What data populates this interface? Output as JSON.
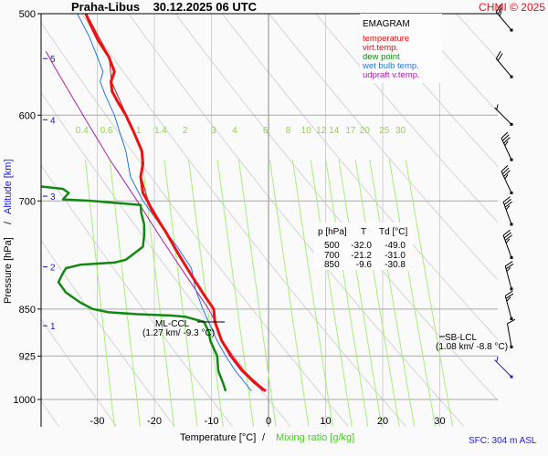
{
  "header": {
    "title": "Praha-Libus    30.12.2025 06 UTC",
    "station": "Praha-Libus",
    "datetime": "30.12.2025 06 UTC",
    "brand": "CHMI © 2025"
  },
  "footer": {
    "sfc": "SFC: 304 m ASL"
  },
  "chart_data": {
    "type": "line",
    "subtype": "emagram",
    "title": "Praha-Libus 30.12.2025 06 UTC",
    "xlabel": "Temperature [°C]",
    "xlabel_secondary": "Mixing ratio [g/kg]",
    "xlabel_separator": "/",
    "ylabel": "Pressure [hPa]",
    "ylabel_secondary": "Altitude [km]",
    "ylabel_separator": "/",
    "xlim": [
      -40,
      40
    ],
    "ylim": [
      1000,
      500
    ],
    "y_scale": "log",
    "x_ticks": [
      "-30",
      "-20",
      "-10",
      "0",
      "10",
      "20",
      "30"
    ],
    "x_tick_values": [
      -30,
      -20,
      -10,
      0,
      10,
      20,
      30
    ],
    "y_ticks": [
      "500",
      "600",
      "700",
      "850",
      "925",
      "1000"
    ],
    "y_tick_values": [
      500,
      600,
      700,
      850,
      925,
      1000
    ],
    "altitude_ticks": [
      {
        "label": "1",
        "pressure": 876
      },
      {
        "label": "2",
        "pressure": 788
      },
      {
        "label": "3",
        "pressure": 694
      },
      {
        "label": "4",
        "pressure": 605
      },
      {
        "label": "5",
        "pressure": 542
      }
    ],
    "mixing_ratio_labels": [
      "0.4",
      "0.6",
      "1",
      "1.4",
      "2",
      "3",
      "4",
      "6",
      "8",
      "10",
      "12",
      "14",
      "17",
      "20",
      "25",
      "30"
    ],
    "mixing_ratio_values": [
      0.4,
      0.6,
      1,
      1.4,
      2,
      3,
      4,
      6,
      8,
      10,
      12,
      14,
      17,
      20,
      25,
      30
    ],
    "legend": {
      "title": "EMAGRAM",
      "placement": "top-right",
      "items": [
        {
          "label": "temperature",
          "color": "#ee1111"
        },
        {
          "label": "virt.temp.",
          "color": "#aa2222"
        },
        {
          "label": "dew point",
          "color": "#118811"
        },
        {
          "label": "wet bulb temp.",
          "color": "#2277dd"
        },
        {
          "label": "udpraft v.temp.",
          "color": "#aa22aa"
        }
      ]
    },
    "series": [
      {
        "name": "temperature",
        "color": "#ee1111",
        "points": [
          [
            985,
            -0.5
          ],
          [
            970,
            -2.5
          ],
          [
            950,
            -4.5
          ],
          [
            925,
            -6.5
          ],
          [
            900,
            -8.2
          ],
          [
            870,
            -9.4
          ],
          [
            850,
            -9.6
          ],
          [
            830,
            -11.2
          ],
          [
            800,
            -13.5
          ],
          [
            770,
            -15.8
          ],
          [
            740,
            -18.0
          ],
          [
            715,
            -20.2
          ],
          [
            700,
            -21.2
          ],
          [
            690,
            -22.0
          ],
          [
            670,
            -22.4
          ],
          [
            655,
            -22.0
          ],
          [
            640,
            -22.2
          ],
          [
            620,
            -23.5
          ],
          [
            600,
            -25.0
          ],
          [
            585,
            -26.5
          ],
          [
            575,
            -27.4
          ],
          [
            565,
            -27.6
          ],
          [
            555,
            -27.0
          ],
          [
            540,
            -28.0
          ],
          [
            525,
            -29.8
          ],
          [
            510,
            -31.2
          ],
          [
            500,
            -32.0
          ]
        ]
      },
      {
        "name": "virt.temp.",
        "color": "#aa2222",
        "points": [
          [
            985,
            -0.4
          ],
          [
            950,
            -4.4
          ],
          [
            925,
            -6.4
          ],
          [
            900,
            -8.1
          ],
          [
            870,
            -9.3
          ],
          [
            850,
            -9.5
          ],
          [
            800,
            -13.4
          ],
          [
            740,
            -17.9
          ],
          [
            700,
            -21.1
          ],
          [
            670,
            -22.3
          ],
          [
            640,
            -22.1
          ],
          [
            600,
            -24.9
          ],
          [
            565,
            -27.5
          ],
          [
            540,
            -27.9
          ],
          [
            500,
            -31.9
          ]
        ]
      },
      {
        "name": "dew point",
        "color": "#118811",
        "points": [
          [
            985,
            -7.5
          ],
          [
            970,
            -8.0
          ],
          [
            950,
            -8.8
          ],
          [
            925,
            -9.0
          ],
          [
            900,
            -10.2
          ],
          [
            885,
            -10.5
          ],
          [
            870,
            -11.3
          ],
          [
            862,
            -14.5
          ],
          [
            860,
            -17.0
          ],
          [
            858,
            -23.0
          ],
          [
            855,
            -28.0
          ],
          [
            850,
            -30.8
          ],
          [
            840,
            -33.0
          ],
          [
            825,
            -35.5
          ],
          [
            810,
            -36.8
          ],
          [
            800,
            -36.2
          ],
          [
            790,
            -35.5
          ],
          [
            785,
            -33.0
          ],
          [
            782,
            -27.0
          ],
          [
            778,
            -25.0
          ],
          [
            772,
            -24.0
          ],
          [
            760,
            -22.0
          ],
          [
            745,
            -21.8
          ],
          [
            730,
            -21.8
          ],
          [
            715,
            -22.3
          ],
          [
            705,
            -22.4
          ],
          [
            700,
            -31.0
          ],
          [
            698,
            -36.0
          ],
          [
            690,
            -35.0
          ],
          [
            685,
            -36.0
          ],
          [
            682,
            -40.0
          ]
        ]
      },
      {
        "name": "wet bulb temp.",
        "color": "#2277dd",
        "points": [
          [
            985,
            -3.0
          ],
          [
            950,
            -5.8
          ],
          [
            925,
            -7.5
          ],
          [
            900,
            -9.0
          ],
          [
            870,
            -10.5
          ],
          [
            850,
            -11.5
          ],
          [
            820,
            -12.8
          ],
          [
            790,
            -13.5
          ],
          [
            760,
            -16.0
          ],
          [
            730,
            -19.0
          ],
          [
            700,
            -22.0
          ],
          [
            670,
            -24.2
          ],
          [
            640,
            -25.0
          ],
          [
            620,
            -26.0
          ],
          [
            600,
            -27.0
          ],
          [
            580,
            -28.5
          ],
          [
            565,
            -29.5
          ],
          [
            555,
            -29.0
          ],
          [
            540,
            -30.0
          ],
          [
            520,
            -31.5
          ],
          [
            500,
            -33.5
          ]
        ]
      },
      {
        "name": "udpraft v.temp.",
        "color": "#aa22aa",
        "points": [
          [
            985,
            -1.0
          ],
          [
            950,
            -4.8
          ],
          [
            925,
            -6.8
          ],
          [
            900,
            -8.3
          ],
          [
            870,
            -9.3
          ],
          [
            850,
            -10.5
          ],
          [
            800,
            -14.5
          ],
          [
            750,
            -18.7
          ],
          [
            700,
            -23.0
          ],
          [
            650,
            -27.8
          ],
          [
            600,
            -32.5
          ],
          [
            550,
            -37.5
          ],
          [
            535,
            -39.0
          ]
        ]
      }
    ],
    "levels_table": {
      "headers": [
        "p [hPa]",
        "T",
        "Td [°C]"
      ],
      "rows": [
        [
          "500",
          "-32.0",
          "-49.0"
        ],
        [
          "700",
          "-21.2",
          "-31.0"
        ],
        [
          "850",
          "-9.6",
          "-30.8"
        ]
      ]
    },
    "annotations": [
      {
        "name": "ml-ccl",
        "label": "ML-CCL",
        "detail": "(1.27 km/ -9.3 °C)",
        "pressure": 862,
        "temperature": -9.3
      },
      {
        "name": "sb-lcl",
        "label": "SB-LCL",
        "detail": "(1.08 km/ -8.8 °C)",
        "pressure": 870,
        "temperature": -8.8
      }
    ],
    "wind_barbs": [
      {
        "pressure": 515,
        "direction_deg": 320,
        "speed_kt": 25,
        "color": "#000000"
      },
      {
        "pressure": 560,
        "direction_deg": 320,
        "speed_kt": 20,
        "color": "#000000"
      },
      {
        "pressure": 610,
        "direction_deg": 315,
        "speed_kt": 5,
        "color": "#000000"
      },
      {
        "pressure": 650,
        "direction_deg": 335,
        "speed_kt": 35,
        "color": "#000000"
      },
      {
        "pressure": 690,
        "direction_deg": 335,
        "speed_kt": 35,
        "color": "#000000"
      },
      {
        "pressure": 730,
        "direction_deg": 340,
        "speed_kt": 35,
        "color": "#000000"
      },
      {
        "pressure": 775,
        "direction_deg": 340,
        "speed_kt": 35,
        "color": "#000000"
      },
      {
        "pressure": 820,
        "direction_deg": 345,
        "speed_kt": 25,
        "color": "#000000"
      },
      {
        "pressure": 865,
        "direction_deg": 345,
        "speed_kt": 25,
        "color": "#000000"
      },
      {
        "pressure": 910,
        "direction_deg": 350,
        "speed_kt": 10,
        "color": "#000000"
      },
      {
        "pressure": 960,
        "direction_deg": 315,
        "speed_kt": 5,
        "color": "#1a1acc"
      }
    ],
    "grid": true
  }
}
